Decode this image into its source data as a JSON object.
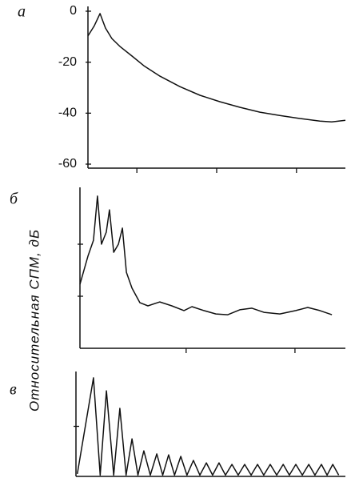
{
  "chart_data": [
    {
      "type": "line",
      "label": "а",
      "color": "#111",
      "x": [
        0,
        2.5,
        4.7,
        6.8,
        9.3,
        12.4,
        17.1,
        21.7,
        28,
        35.7,
        43.5,
        51.2,
        59,
        66.8,
        74.5,
        82.3,
        90.1,
        94.7,
        100
      ],
      "values": [
        -9.7,
        -5.7,
        -0.9,
        -6.6,
        -10.7,
        -13.8,
        -17.6,
        -21.4,
        -25.5,
        -29.6,
        -33,
        -35.5,
        -37.7,
        -39.6,
        -40.9,
        -42.1,
        -43.1,
        -43.4,
        -42.8
      ],
      "xlim": [
        0,
        100
      ],
      "xticks": [
        19,
        50,
        81
      ],
      "ylim": [
        -60,
        0
      ],
      "yticks": [
        0,
        -20,
        -40,
        -60
      ],
      "tick_labels": true
    },
    {
      "type": "line",
      "label": "б",
      "ylabel": "Относительная СПМ, дБ",
      "color": "#111",
      "x": [
        0,
        3,
        5.1,
        6.6,
        8.1,
        9.9,
        11.1,
        12.7,
        14.5,
        16,
        17.5,
        19.6,
        22.6,
        25.6,
        30.1,
        34.6,
        39.2,
        42.2,
        46.7,
        51.2,
        55.7,
        60.2,
        64.8,
        69.3,
        75.3,
        81.3,
        85.8,
        90.4,
        94.9
      ],
      "values": [
        -35.4,
        -24.6,
        -18.5,
        -1.5,
        -20,
        -15.4,
        -6.8,
        -23.1,
        -20,
        -13.8,
        -30.8,
        -36.9,
        -42.5,
        -43.7,
        -42.2,
        -43.7,
        -45.5,
        -44,
        -45.5,
        -46.8,
        -47.1,
        -45.2,
        -44.6,
        -46.2,
        -46.8,
        -45.5,
        -44.3,
        -45.5,
        -47.1
      ],
      "xlim": [
        0,
        100
      ],
      "xticks": [
        40,
        81
      ],
      "ylim": [
        -60,
        0
      ],
      "yticks": [
        -20,
        -40
      ],
      "tick_labels": false
    },
    {
      "type": "line",
      "label": "в",
      "color": "#111",
      "x": [
        0.5,
        6.5,
        9,
        11.3,
        14,
        16.3,
        18.6,
        20.8,
        23,
        25.2,
        27.6,
        30,
        32.2,
        34.4,
        36.6,
        38.9,
        41.2,
        43.6,
        46,
        48.4,
        50.7,
        53.1,
        55.5,
        57.9,
        60.2,
        62.6,
        65,
        67.4,
        69.7,
        72.1,
        74.5,
        76.9,
        79.2,
        81.6,
        84,
        86.4,
        88.7,
        91.1,
        93.2,
        95.3,
        97.5
      ],
      "values": [
        -39,
        -0.6,
        -39.5,
        -5.8,
        -39.5,
        -12.8,
        -39.5,
        -25,
        -39.5,
        -29.8,
        -39.5,
        -31,
        -39.5,
        -31.4,
        -39.5,
        -32,
        -39.5,
        -33.6,
        -39.5,
        -34.6,
        -39.5,
        -34.6,
        -39.5,
        -35.2,
        -39.5,
        -35.2,
        -39.5,
        -35.2,
        -39.5,
        -35.2,
        -39.5,
        -35.2,
        -39.5,
        -35.2,
        -39.5,
        -35.2,
        -39.5,
        -35.2,
        -39.5,
        -35.2,
        -39.5
      ],
      "xlim": [
        0,
        100
      ],
      "ylim": [
        -40,
        0
      ],
      "yticks": [
        -20
      ],
      "tick_labels": false
    }
  ]
}
